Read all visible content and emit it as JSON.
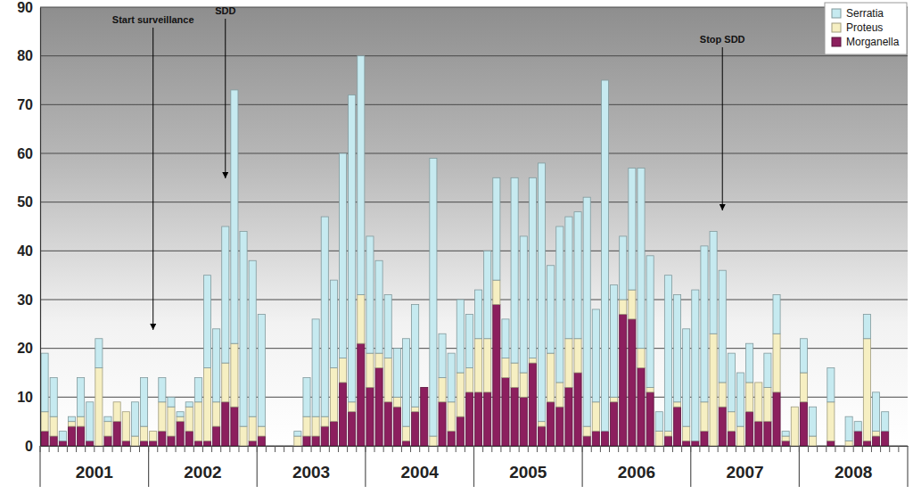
{
  "chart_data": {
    "type": "bar",
    "stacked": true,
    "grid": true,
    "legend": "upper right",
    "categories": [
      null,
      null,
      null,
      null,
      null,
      null,
      "2001",
      null,
      null,
      null,
      null,
      null,
      null,
      null,
      null,
      null,
      null,
      null,
      "2002",
      null,
      null,
      null,
      null,
      null,
      null,
      null,
      null,
      null,
      null,
      null,
      "2003",
      null,
      null,
      null,
      null,
      null,
      null,
      null,
      null,
      null,
      null,
      null,
      "2004",
      null,
      null,
      null,
      null,
      null,
      null,
      null,
      null,
      null,
      null,
      null,
      "2005",
      null,
      null,
      null,
      null,
      null,
      null,
      null,
      null,
      null,
      null,
      null,
      "2006",
      null,
      null,
      null,
      null,
      null,
      null,
      null,
      null,
      null,
      null,
      null,
      "2007",
      null,
      null,
      null,
      null,
      null,
      null,
      null,
      null,
      null,
      null,
      null,
      "2008",
      null,
      null,
      null,
      null,
      null
    ],
    "series": [
      {
        "name": "Morganella",
        "color": "#8c1f5e",
        "values": [
          3,
          2,
          1,
          4,
          4,
          1,
          0,
          2,
          5,
          1,
          0,
          1,
          1,
          3,
          2,
          5,
          3,
          1,
          1,
          4,
          9,
          8,
          0,
          1,
          2,
          0,
          0,
          0,
          0,
          2,
          2,
          4,
          5,
          13,
          7,
          21,
          12,
          16,
          9,
          8,
          1,
          7,
          12,
          0,
          9,
          3,
          6,
          11,
          11,
          11,
          29,
          14,
          12,
          10,
          17,
          4,
          9,
          8,
          12,
          15,
          2,
          3,
          3,
          9,
          27,
          26,
          16,
          11,
          0,
          2,
          8,
          1,
          1,
          3,
          0,
          8,
          3,
          0,
          7,
          5,
          5,
          11,
          1,
          0,
          9,
          0,
          0,
          1,
          0,
          0,
          3,
          1,
          2,
          3,
          0,
          0
        ]
      },
      {
        "name": "Proteus",
        "color": "#f6efc2",
        "values": [
          4,
          4,
          0,
          1,
          2,
          0,
          16,
          3,
          4,
          6,
          2,
          3,
          2,
          6,
          6,
          1,
          5,
          8,
          15,
          5,
          8,
          13,
          4,
          5,
          2,
          0,
          0,
          0,
          2,
          4,
          4,
          2,
          11,
          5,
          2,
          10,
          7,
          3,
          9,
          2,
          3,
          1,
          0,
          2,
          5,
          6,
          9,
          5,
          11,
          11,
          5,
          4,
          5,
          5,
          1,
          1,
          10,
          5,
          10,
          7,
          2,
          6,
          0,
          1,
          3,
          6,
          4,
          1,
          3,
          1,
          1,
          3,
          0,
          6,
          23,
          5,
          4,
          4,
          6,
          8,
          7,
          12,
          1,
          8,
          6,
          2,
          0,
          8,
          0,
          1,
          0,
          21,
          1,
          0,
          0,
          0
        ]
      },
      {
        "name": "Serratia",
        "color": "#c6eaf0",
        "values": [
          12,
          8,
          2,
          1,
          8,
          8,
          6,
          1,
          0,
          0,
          7,
          10,
          0,
          5,
          2,
          1,
          1,
          5,
          19,
          15,
          28,
          52,
          40,
          32,
          23,
          0,
          0,
          0,
          1,
          8,
          20,
          41,
          18,
          42,
          63,
          49,
          24,
          19,
          13,
          10,
          18,
          21,
          0,
          57,
          9,
          10,
          15,
          11,
          10,
          18,
          21,
          8,
          38,
          28,
          37,
          53,
          18,
          32,
          25,
          26,
          47,
          19,
          72,
          23,
          13,
          25,
          37,
          27,
          4,
          32,
          22,
          20,
          31,
          32,
          21,
          23,
          12,
          11,
          8,
          0,
          7,
          8,
          1,
          0,
          7,
          6,
          0,
          7,
          0,
          5,
          2,
          5,
          8,
          4,
          0,
          0
        ]
      }
    ],
    "ylim": [
      0,
      90
    ],
    "yticks": [
      0,
      10,
      20,
      30,
      40,
      50,
      60,
      70,
      80,
      90
    ],
    "annotations": [
      {
        "text": "Start surveillance",
        "x": 12
      },
      {
        "text": "SDD",
        "x": 20
      },
      {
        "text": "Stop SDD",
        "x": 75
      }
    ]
  }
}
